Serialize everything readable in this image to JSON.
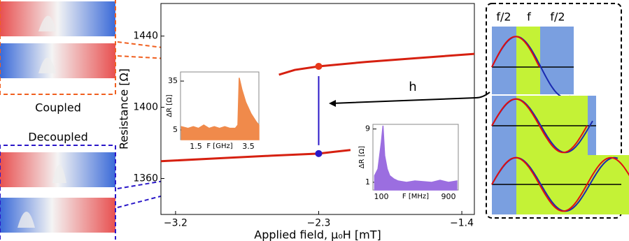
{
  "chart_data": [
    {
      "type": "line",
      "ylabel": "Resistance [Ω]",
      "xlabel": "Applied field, μ₀H [mT]",
      "xlim": [
        -3.292,
        -1.321
      ],
      "ylim": [
        1339.8,
        1458.3
      ],
      "xticks": [
        {
          "value": -3.2,
          "label": "−3.2"
        },
        {
          "value": -2.3,
          "label": "−2.3"
        },
        {
          "value": -1.4,
          "label": "−1.4"
        }
      ],
      "yticks": [
        1360,
        1400,
        1440
      ],
      "series": [
        {
          "color": "#d62010",
          "x": [
            -2.55,
            -2.45,
            -2.3,
            -2.0,
            -1.7,
            -1.321
          ],
          "values": [
            1418.3,
            1421,
            1423,
            1425.5,
            1427.5,
            1430
          ]
        },
        {
          "color": "#d62010",
          "x": [
            -3.292,
            -2.9,
            -2.6,
            -2.3,
            -2.2,
            -2.1
          ],
          "values": [
            1369.7,
            1371.5,
            1372.8,
            1374,
            1375,
            1376
          ]
        }
      ],
      "markers": {
        "x": [
          -2.3,
          -2.3
        ],
        "values": [
          1423,
          1374
        ],
        "colors": [
          "#e8381a",
          "#2a18c8"
        ]
      }
    },
    {
      "type": "area",
      "xlabel": "F [GHz]",
      "ylabel": "ΔR [Ω]",
      "color": "#f08a4b",
      "xlim": [
        0.913,
        3.9
      ],
      "ylim": [
        -1,
        40.6
      ],
      "xticks": [
        1.5,
        3.5
      ],
      "yticks": [
        5,
        35
      ],
      "x": [
        0.95,
        1.2,
        1.4,
        1.6,
        1.8,
        2.0,
        2.2,
        2.4,
        2.6,
        2.8,
        3.0,
        3.1,
        3.15,
        3.25,
        3.4,
        3.6,
        3.8,
        3.9
      ],
      "values": [
        7,
        6,
        7,
        6,
        8,
        6,
        7,
        6,
        7,
        6,
        6,
        8,
        37,
        30,
        22,
        15,
        10,
        8
      ]
    },
    {
      "type": "area",
      "xlabel": "F [MHz]",
      "ylabel": "ΔR [Ω]",
      "color": "#9b6ee0",
      "xlim": [
        0,
        1017
      ],
      "ylim": [
        -0.16,
        9.7
      ],
      "xticks": [
        100,
        900
      ],
      "yticks": [
        1,
        9
      ],
      "x": [
        20,
        60,
        100,
        120,
        140,
        170,
        200,
        250,
        300,
        400,
        500,
        600,
        700,
        800,
        900,
        1000
      ],
      "values": [
        2,
        3,
        7,
        9.5,
        5,
        3,
        2,
        1.5,
        1.2,
        1,
        1.2,
        1.1,
        1,
        1.3,
        1,
        1.2
      ]
    }
  ],
  "labels": {
    "coupled": "Coupled",
    "decoupled": "Decoupled",
    "half_left": "f/2",
    "full": "f",
    "half_right": "f/2",
    "field": "h"
  }
}
